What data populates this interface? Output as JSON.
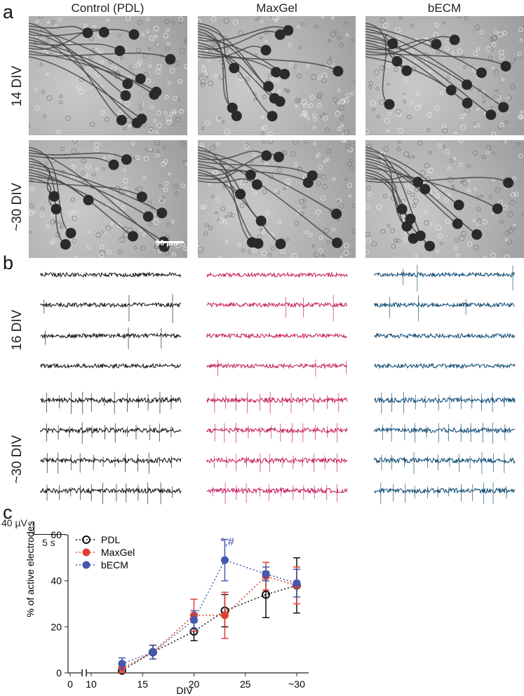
{
  "panel_labels": {
    "a": "a",
    "b": "b",
    "c": "c"
  },
  "columns": [
    "Control (PDL)",
    "MaxGel",
    "bECM"
  ],
  "panel_a": {
    "rows": [
      "14 DIV",
      "~30 DIV"
    ],
    "scale_bar": "50 µm"
  },
  "panel_b": {
    "rows": [
      "16 DIV",
      "~30 DIV"
    ],
    "trace_colors": [
      "#111111",
      "#c2185b",
      "#0b4770"
    ],
    "scale_y": "40 µV",
    "scale_x": "5 s"
  },
  "chart_data": {
    "type": "line",
    "xlabel": "DIV",
    "ylabel": "% of active electrodes",
    "ylim": [
      0,
      60
    ],
    "y_ticks": [
      "0",
      "20",
      "40",
      "60"
    ],
    "x_ticks": [
      "0",
      "10",
      "15",
      "20",
      "25",
      "~30"
    ],
    "axis_break": "x between 0 and 10",
    "legend_position": "top-left",
    "annotation": "*,#",
    "annotation_color": "#3b4fa8",
    "series": [
      {
        "name": "PDL",
        "color": "#111111",
        "marker": "open-circle",
        "x": [
          13,
          16,
          20,
          23,
          27,
          30
        ],
        "y": [
          1,
          9,
          18,
          27,
          34,
          38
        ],
        "err": [
          1,
          3,
          4,
          7,
          10,
          12
        ]
      },
      {
        "name": "MaxGel",
        "color": "#e0402f",
        "marker": "filled-circle",
        "x": [
          13,
          16,
          20,
          23,
          27,
          30
        ],
        "y": [
          2,
          9,
          25,
          25,
          42,
          38
        ],
        "err": [
          2,
          3,
          7,
          10,
          6,
          8
        ]
      },
      {
        "name": "bECM",
        "color": "#4458b0",
        "marker": "filled-circle",
        "x": [
          13,
          16,
          20,
          23,
          27,
          30
        ],
        "y": [
          4,
          9,
          23,
          49,
          43,
          39
        ],
        "err": [
          2.5,
          3,
          4,
          9,
          3,
          6
        ]
      }
    ]
  }
}
